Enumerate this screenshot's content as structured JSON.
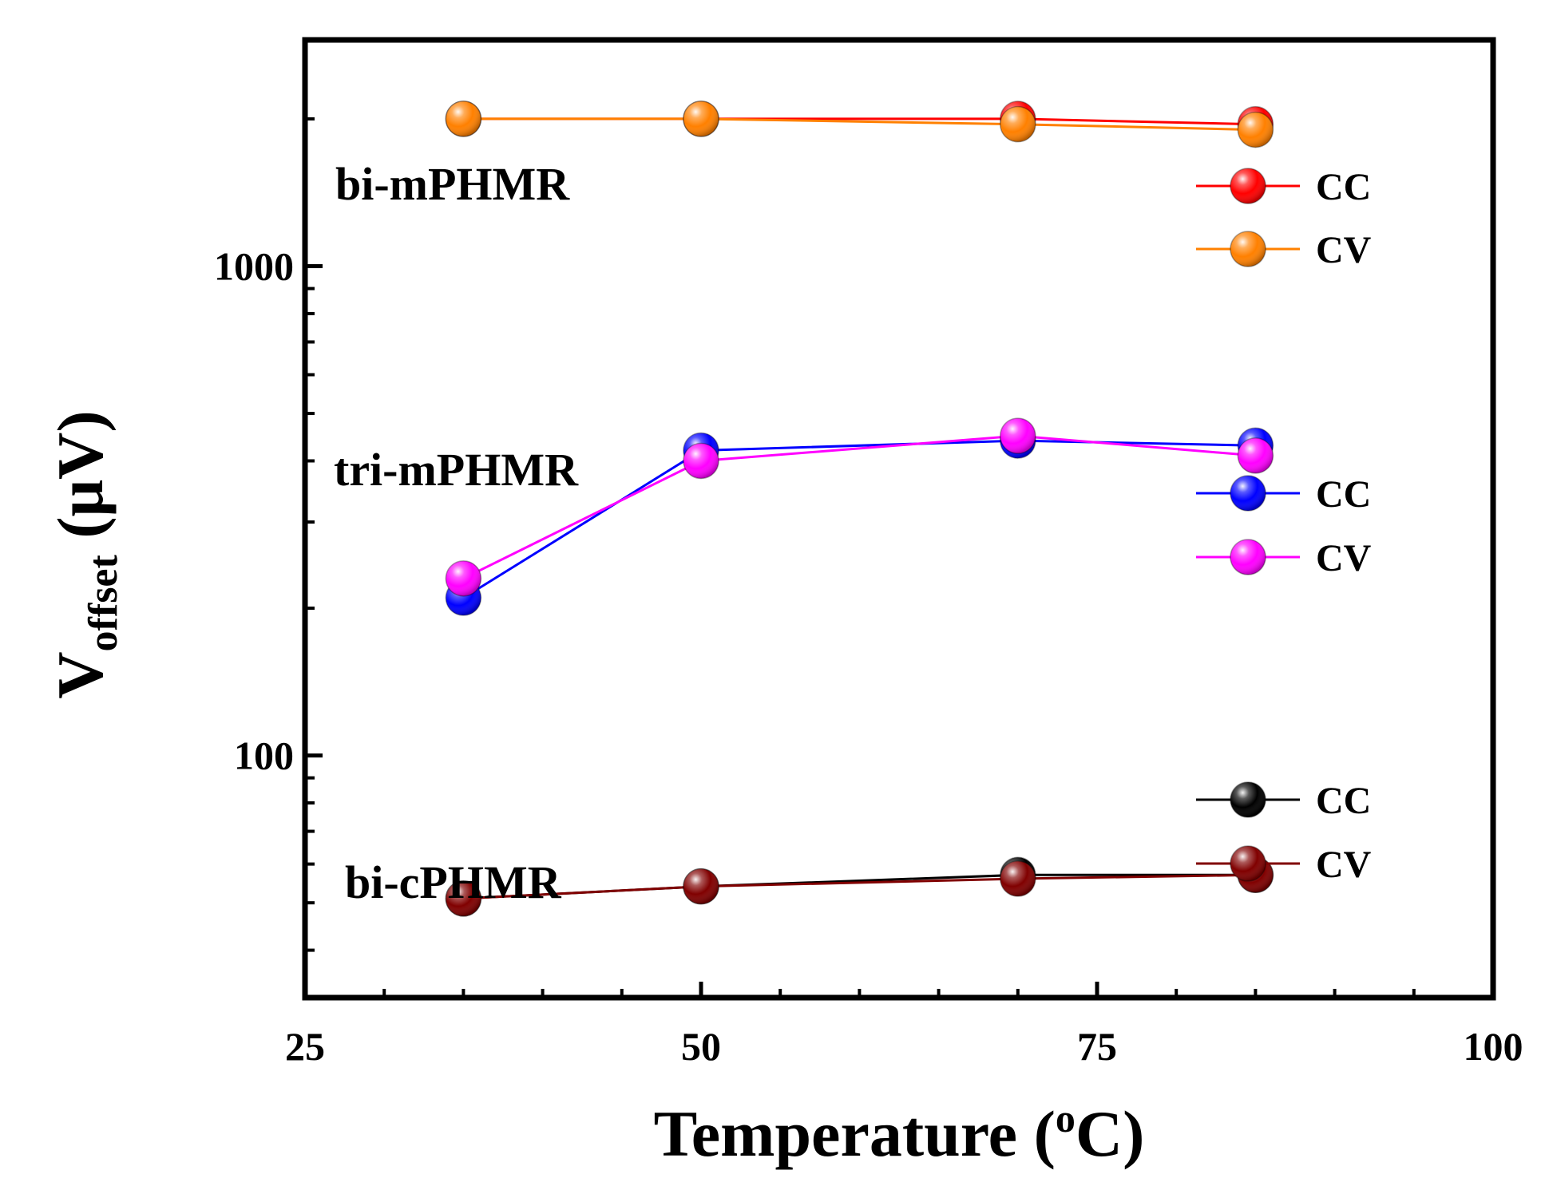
{
  "chart_data": {
    "type": "line",
    "title": "",
    "xlabel": "Temperature (",
    "xlabel_degree": "o",
    "xlabel_unit": "C)",
    "ylabel_main": "V",
    "ylabel_sub": "offset",
    "ylabel_unit": " (μV)",
    "xscale": "linear",
    "yscale": "log",
    "xlim": [
      25,
      100
    ],
    "ylim": [
      32,
      2900
    ],
    "xticks": [
      25,
      50,
      75,
      100
    ],
    "xtick_labels": [
      "25",
      "50",
      "75",
      "100"
    ],
    "yticks": [
      100,
      1000
    ],
    "ytick_labels": [
      "100",
      "1000"
    ],
    "grid": false,
    "x": [
      35,
      50,
      70,
      85
    ],
    "series": [
      {
        "name": "CC",
        "group": "bi-mPHMR",
        "color": "#ff0000",
        "values": [
          2000,
          2000,
          2000,
          1950
        ]
      },
      {
        "name": "CV",
        "group": "bi-mPHMR",
        "color": "#ff8000",
        "values": [
          2000,
          2000,
          1950,
          1900
        ]
      },
      {
        "name": "CC",
        "group": "tri-mPHMR",
        "color": "#0000ff",
        "values": [
          210,
          420,
          440,
          430
        ]
      },
      {
        "name": "CV",
        "group": "tri-mPHMR",
        "color": "#ff00ff",
        "values": [
          230,
          400,
          450,
          410
        ]
      },
      {
        "name": "CC",
        "group": "bi-cPHMR",
        "color": "#000000",
        "values": [
          51,
          54,
          57,
          57
        ]
      },
      {
        "name": "CV",
        "group": "bi-cPHMR",
        "color": "#800000",
        "values": [
          51,
          54,
          56,
          57
        ]
      }
    ],
    "group_labels": [
      "bi-mPHMR",
      "tri-mPHMR",
      "bi-cPHMR"
    ],
    "legends": [
      {
        "group": "bi-mPHMR",
        "entries": [
          {
            "label": "CC",
            "color": "#ff0000"
          },
          {
            "label": "CV",
            "color": "#ff8000"
          }
        ]
      },
      {
        "group": "tri-mPHMR",
        "entries": [
          {
            "label": "CC",
            "color": "#0000ff"
          },
          {
            "label": "CV",
            "color": "#ff00ff"
          }
        ]
      },
      {
        "group": "bi-cPHMR",
        "entries": [
          {
            "label": "CC",
            "color": "#000000"
          },
          {
            "label": "CV",
            "color": "#800000"
          }
        ]
      }
    ]
  }
}
